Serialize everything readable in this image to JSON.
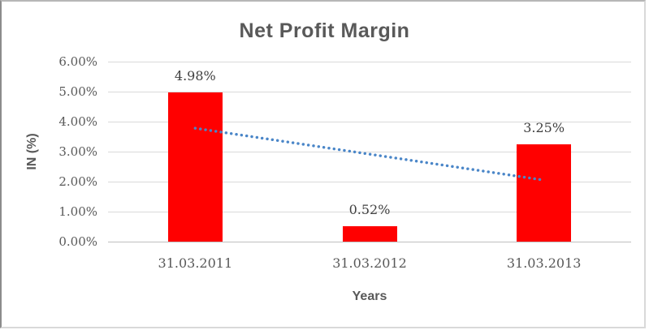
{
  "chart_data": {
    "type": "bar",
    "title": "Net Profit Margin",
    "xlabel": "Years",
    "ylabel": "IN (%)",
    "categories": [
      "31.03.2011",
      "31.03.2012",
      "31.03.2013"
    ],
    "values": [
      4.98,
      0.52,
      3.25
    ],
    "data_labels": [
      "4.98%",
      "0.52%",
      "3.25%"
    ],
    "ylim": [
      0,
      6
    ],
    "ytick_step": 1,
    "ytick_labels": [
      "0.00%",
      "1.00%",
      "2.00%",
      "3.00%",
      "4.00%",
      "5.00%",
      "6.00%"
    ],
    "grid": true,
    "legend": "none",
    "bar_color": "#ff0000",
    "gridline_color": "#d9d9d9",
    "axis_line_color": "#bfbfbf",
    "text_color": "#595959",
    "data_label_color": "#404040",
    "trendline": {
      "type": "linear",
      "style": "dotted",
      "color": "#4a86c8",
      "start_value": 3.78,
      "end_value": 2.05
    }
  }
}
